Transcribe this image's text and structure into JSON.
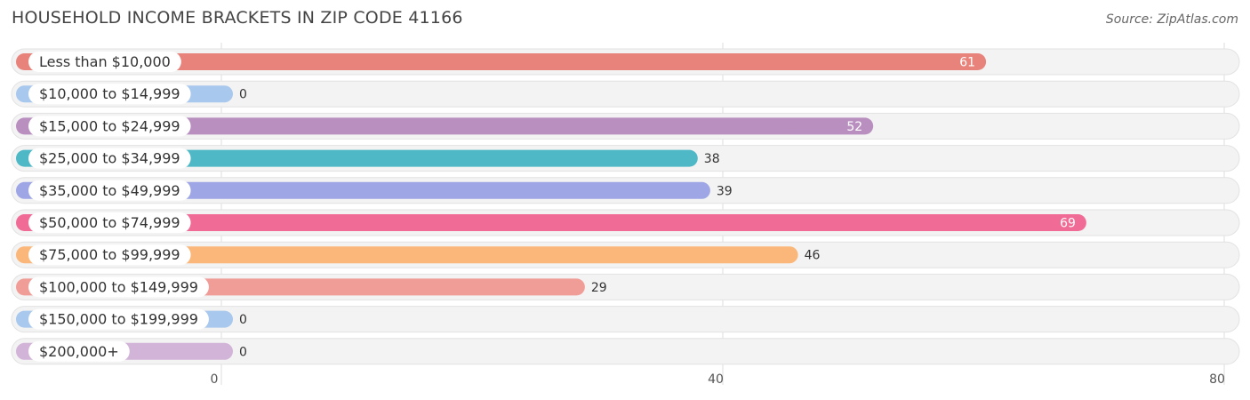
{
  "header": {
    "title": "HOUSEHOLD INCOME BRACKETS IN ZIP CODE 41166",
    "source": "Source: ZipAtlas.com"
  },
  "chart_data": {
    "type": "bar",
    "orientation": "horizontal",
    "title": "HOUSEHOLD INCOME BRACKETS IN ZIP CODE 41166",
    "categories": [
      "Less than $10,000",
      "$10,000 to $14,999",
      "$15,000 to $24,999",
      "$25,000 to $34,999",
      "$35,000 to $49,999",
      "$50,000 to $74,999",
      "$75,000 to $99,999",
      "$100,000 to $149,999",
      "$150,000 to $199,999",
      "$200,000+"
    ],
    "values": [
      61,
      0,
      52,
      38,
      39,
      69,
      46,
      29,
      0,
      0
    ],
    "colors": [
      "#e8837b",
      "#a9c8ee",
      "#b98fc0",
      "#4fb8c6",
      "#9ea6e6",
      "#f06b95",
      "#fbb77a",
      "#f09d98",
      "#a9c8ee",
      "#d2b4d8"
    ],
    "xlim": [
      0,
      80
    ],
    "ticks": [
      0,
      40,
      80
    ],
    "tick_labels": [
      "0",
      "40",
      "80"
    ],
    "grid": true,
    "value_labels_inside": [
      true,
      false,
      true,
      false,
      false,
      true,
      false,
      false,
      false,
      false
    ]
  }
}
